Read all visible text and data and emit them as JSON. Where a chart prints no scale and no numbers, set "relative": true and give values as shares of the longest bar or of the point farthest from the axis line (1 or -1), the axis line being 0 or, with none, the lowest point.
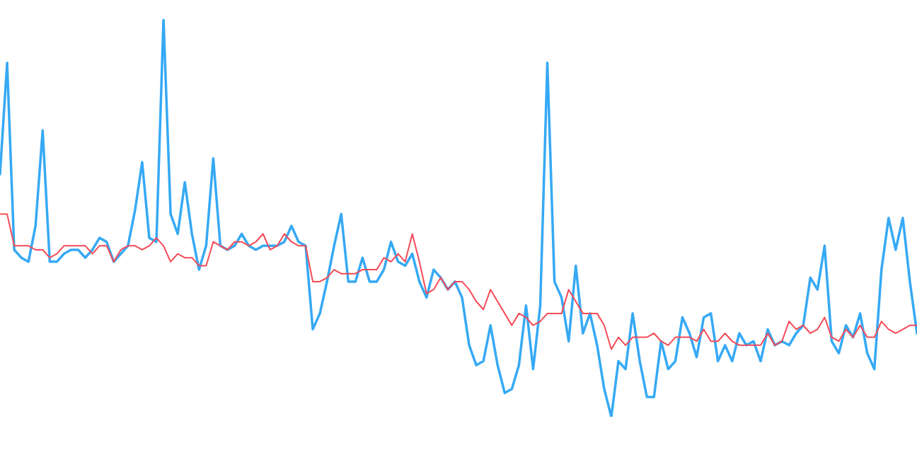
{
  "chart_data": {
    "type": "line",
    "relative": true,
    "legend": false,
    "marker": "none",
    "line_style": "solid",
    "tick_labels": false,
    "categories": [
      null,
      null,
      null,
      null,
      null,
      null,
      null,
      null,
      null,
      null,
      null,
      null,
      null,
      null,
      null,
      null,
      null,
      null,
      null,
      null,
      null,
      null,
      null,
      null,
      null,
      null,
      null,
      null,
      null,
      null,
      null,
      null,
      null,
      null,
      null,
      null,
      null,
      null,
      null,
      null,
      null,
      null,
      null,
      null,
      null,
      null,
      null,
      null,
      null,
      null,
      null,
      null,
      null,
      null,
      null,
      null,
      null,
      null,
      null,
      null,
      null,
      null,
      null,
      null,
      null,
      null,
      null,
      null,
      null,
      null,
      null,
      null,
      null,
      null,
      null,
      null,
      null,
      null,
      null,
      null,
      null,
      null,
      null,
      null,
      null,
      null,
      null,
      null,
      null,
      null,
      null,
      null,
      null,
      null,
      null,
      null,
      null,
      null,
      null,
      null,
      null,
      null,
      null,
      null,
      null,
      null,
      null,
      null,
      null,
      null,
      null,
      null,
      null,
      null,
      null,
      null,
      null,
      null,
      null,
      null,
      null,
      null,
      null,
      null,
      null,
      null,
      null,
      null,
      null,
      null
    ],
    "series": [
      {
        "color": "#f44a57",
        "values": [
          0.51,
          0.51,
          0.43,
          0.43,
          0.43,
          0.42,
          0.42,
          0.4,
          0.41,
          0.43,
          0.43,
          0.43,
          0.43,
          0.41,
          0.43,
          0.43,
          0.39,
          0.42,
          0.43,
          0.43,
          0.42,
          0.43,
          0.45,
          0.43,
          0.39,
          0.41,
          0.4,
          0.4,
          0.38,
          0.38,
          0.44,
          0.43,
          0.42,
          0.44,
          0.44,
          0.43,
          0.44,
          0.46,
          0.42,
          0.43,
          0.46,
          0.44,
          0.43,
          0.43,
          0.34,
          0.34,
          0.35,
          0.37,
          0.36,
          0.36,
          0.36,
          0.37,
          0.37,
          0.37,
          0.4,
          0.39,
          0.41,
          0.39,
          0.46,
          0.39,
          0.31,
          0.32,
          0.35,
          0.32,
          0.34,
          0.34,
          0.32,
          0.29,
          0.27,
          0.32,
          0.29,
          0.26,
          0.23,
          0.26,
          0.25,
          0.23,
          0.24,
          0.26,
          0.26,
          0.26,
          0.32,
          0.29,
          0.26,
          0.26,
          0.26,
          0.23,
          0.17,
          0.2,
          0.18,
          0.2,
          0.2,
          0.2,
          0.21,
          0.19,
          0.18,
          0.2,
          0.2,
          0.2,
          0.19,
          0.22,
          0.19,
          0.19,
          0.21,
          0.19,
          0.18,
          0.18,
          0.18,
          0.18,
          0.21,
          0.18,
          0.19,
          0.24,
          0.22,
          0.23,
          0.21,
          0.22,
          0.25,
          0.2,
          0.19,
          0.22,
          0.2,
          0.23,
          0.2,
          0.2,
          0.24,
          0.22,
          0.21,
          0.22,
          0.23,
          0.23
        ]
      },
      {
        "color": "#36a9f5",
        "values": [
          0.61,
          0.89,
          0.42,
          0.4,
          0.39,
          0.48,
          0.72,
          0.39,
          0.39,
          0.41,
          0.42,
          0.42,
          0.4,
          0.42,
          0.45,
          0.44,
          0.39,
          0.41,
          0.43,
          0.52,
          0.64,
          0.45,
          0.44,
          1,
          0.51,
          0.46,
          0.59,
          0.46,
          0.37,
          0.43,
          0.65,
          0.43,
          0.42,
          0.43,
          0.46,
          0.43,
          0.42,
          0.43,
          0.43,
          0.43,
          0.44,
          0.48,
          0.44,
          0.43,
          0.22,
          0.26,
          0.34,
          0.43,
          0.51,
          0.34,
          0.34,
          0.4,
          0.34,
          0.34,
          0.37,
          0.44,
          0.39,
          0.38,
          0.41,
          0.34,
          0.3,
          0.37,
          0.35,
          0.32,
          0.34,
          0.3,
          0.18,
          0.13,
          0.14,
          0.23,
          0.13,
          0.06,
          0.07,
          0.13,
          0.28,
          0.12,
          0.28,
          0.89,
          0.34,
          0.3,
          0.19,
          0.38,
          0.21,
          0.26,
          0.18,
          0.07,
          0,
          0.14,
          0.12,
          0.26,
          0.14,
          0.05,
          0.05,
          0.19,
          0.12,
          0.14,
          0.25,
          0.21,
          0.15,
          0.25,
          0.26,
          0.14,
          0.18,
          0.14,
          0.21,
          0.18,
          0.19,
          0.14,
          0.22,
          0.18,
          0.19,
          0.18,
          0.21,
          0.23,
          0.35,
          0.32,
          0.43,
          0.19,
          0.16,
          0.23,
          0.2,
          0.26,
          0.16,
          0.12,
          0.37,
          0.5,
          0.42,
          0.5,
          0.34,
          0.21
        ]
      }
    ]
  }
}
